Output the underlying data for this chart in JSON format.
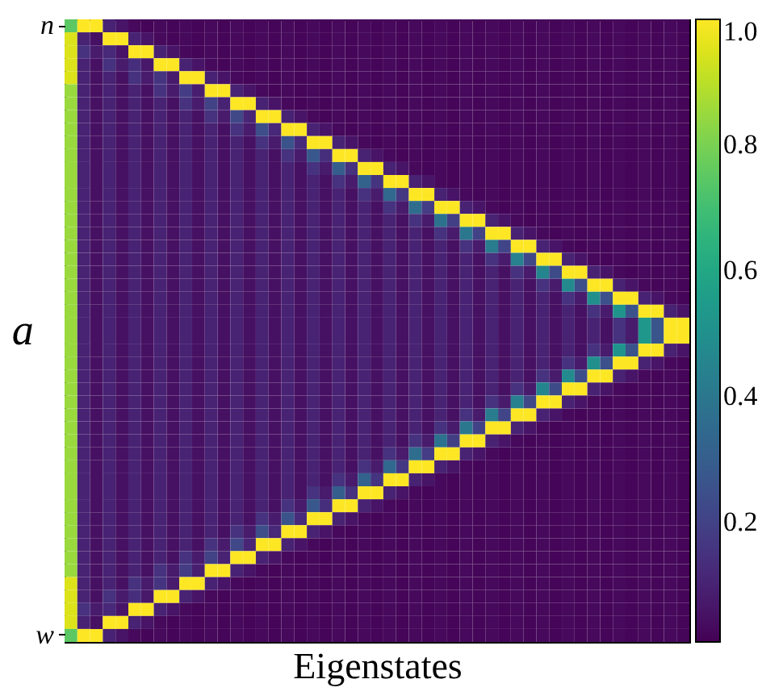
{
  "chart_data": {
    "type": "heatmap",
    "xlabel": "Eigenstates",
    "ylabel": "a",
    "categories": [
      null,
      null,
      null,
      null,
      null,
      null,
      null,
      null,
      null,
      null,
      null,
      null,
      null,
      null,
      null,
      null,
      null,
      null,
      null,
      null,
      null,
      null,
      null,
      null,
      null,
      null,
      null,
      null,
      null,
      null,
      null,
      null,
      null,
      null,
      null,
      null,
      null,
      null,
      null,
      null,
      null,
      null,
      null,
      null,
      null,
      null,
      null,
      null,
      null
    ],
    "y_categories": [
      "n",
      null,
      null,
      null,
      null,
      null,
      null,
      null,
      null,
      null,
      null,
      null,
      null,
      null,
      null,
      null,
      null,
      null,
      null,
      null,
      null,
      null,
      null,
      null,
      null,
      null,
      null,
      null,
      null,
      null,
      null,
      null,
      null,
      null,
      null,
      null,
      null,
      null,
      null,
      null,
      null,
      null,
      null,
      null,
      null,
      null,
      null,
      "w"
    ],
    "clim": [
      0.01,
      1
    ],
    "cticks": [
      0.2,
      0.4,
      0.6,
      0.8,
      {
        "value": 1,
        "label": "1.0"
      }
    ],
    "cells": [
      [
        0.75,
        1,
        1,
        0.1,
        0.06,
        0.03,
        0.02,
        0.03,
        0.02,
        0.03,
        0.02,
        0.03,
        0.02,
        0.03,
        0.02,
        0.03,
        0.02,
        0.03,
        0.02,
        0.03,
        0.02,
        0.03,
        0.02,
        0.03,
        0.02,
        0.03,
        0.02,
        0.03,
        0.02,
        0.03,
        0.02,
        0.03,
        0.02,
        0.03,
        0.02,
        0.03,
        0.02,
        0.03,
        0.02,
        0.03,
        0.02,
        0.03,
        0.02,
        0.03,
        0.02,
        0.03,
        0.02,
        0.03,
        0.02
      ],
      [
        0.95,
        0.1,
        0.05,
        1,
        1,
        0.1,
        0.06,
        0.03,
        0.02,
        0.03,
        0.02,
        0.03,
        0.02,
        0.03,
        0.02,
        0.03,
        0.02,
        0.03,
        0.02,
        0.03,
        0.02,
        0.03,
        0.02,
        0.03,
        0.02,
        0.03,
        0.02,
        0.03,
        0.02,
        0.03,
        0.02,
        0.03,
        0.02,
        0.03,
        0.02,
        0.03,
        0.02,
        0.03,
        0.02,
        0.03,
        0.02,
        0.03,
        0.02,
        0.03,
        0.02,
        0.03,
        0.02,
        0.03,
        0.02
      ],
      [
        0.95,
        0.15,
        0.08,
        0.12,
        0.06,
        1,
        1,
        0.1,
        0.06,
        0.03,
        0.02,
        0.03,
        0.02,
        0.03,
        0.02,
        0.03,
        0.02,
        0.03,
        0.02,
        0.03,
        0.02,
        0.03,
        0.02,
        0.03,
        0.02,
        0.03,
        0.02,
        0.03,
        0.02,
        0.03,
        0.02,
        0.03,
        0.02,
        0.03,
        0.02,
        0.03,
        0.02,
        0.03,
        0.02,
        0.03,
        0.02,
        0.03,
        0.02,
        0.03,
        0.02,
        0.03,
        0.02,
        0.03,
        0.02
      ],
      [
        0.95,
        0.1,
        0.05,
        0.15,
        0.08,
        0.14,
        0.07,
        1,
        1,
        0.1,
        0.06,
        0.03,
        0.02,
        0.03,
        0.02,
        0.03,
        0.02,
        0.03,
        0.02,
        0.03,
        0.02,
        0.03,
        0.02,
        0.03,
        0.02,
        0.03,
        0.02,
        0.03,
        0.02,
        0.03,
        0.02,
        0.03,
        0.02,
        0.03,
        0.02,
        0.03,
        0.02,
        0.03,
        0.02,
        0.03,
        0.02,
        0.03,
        0.02,
        0.03,
        0.02,
        0.03,
        0.02,
        0.03,
        0.02
      ],
      [
        0.95,
        0.1,
        0.05,
        0.1,
        0.05,
        0.15,
        0.08,
        0.16,
        0.08,
        1,
        1,
        0.1,
        0.06,
        0.03,
        0.02,
        0.03,
        0.02,
        0.03,
        0.02,
        0.03,
        0.02,
        0.03,
        0.02,
        0.03,
        0.02,
        0.03,
        0.02,
        0.03,
        0.02,
        0.03,
        0.02,
        0.03,
        0.02,
        0.03,
        0.02,
        0.03,
        0.02,
        0.03,
        0.02,
        0.03,
        0.02,
        0.03,
        0.02,
        0.03,
        0.02,
        0.03,
        0.02,
        0.03,
        0.02
      ],
      [
        0.85,
        0.1,
        0.05,
        0.1,
        0.05,
        0.1,
        0.05,
        0.15,
        0.08,
        0.18,
        0.09,
        1,
        1,
        0.1,
        0.06,
        0.03,
        0.02,
        0.03,
        0.02,
        0.03,
        0.02,
        0.03,
        0.02,
        0.03,
        0.02,
        0.03,
        0.02,
        0.03,
        0.02,
        0.03,
        0.02,
        0.03,
        0.02,
        0.03,
        0.02,
        0.03,
        0.02,
        0.03,
        0.02,
        0.03,
        0.02,
        0.03,
        0.02,
        0.03,
        0.02,
        0.03,
        0.02,
        0.03,
        0.02
      ],
      [
        0.85,
        0.1,
        0.05,
        0.1,
        0.05,
        0.1,
        0.05,
        0.1,
        0.05,
        0.15,
        0.08,
        0.2,
        0.1,
        1,
        1,
        0.1,
        0.06,
        0.03,
        0.02,
        0.03,
        0.02,
        0.03,
        0.02,
        0.03,
        0.02,
        0.03,
        0.02,
        0.03,
        0.02,
        0.03,
        0.02,
        0.03,
        0.02,
        0.03,
        0.02,
        0.03,
        0.02,
        0.03,
        0.02,
        0.03,
        0.02,
        0.03,
        0.02,
        0.03,
        0.02,
        0.03,
        0.02,
        0.03,
        0.02
      ],
      [
        0.85,
        0.1,
        0.05,
        0.1,
        0.05,
        0.1,
        0.05,
        0.1,
        0.05,
        0.1,
        0.05,
        0.15,
        0.08,
        0.22,
        0.11,
        1,
        1,
        0.1,
        0.06,
        0.03,
        0.02,
        0.03,
        0.02,
        0.03,
        0.02,
        0.03,
        0.02,
        0.03,
        0.02,
        0.03,
        0.02,
        0.03,
        0.02,
        0.03,
        0.02,
        0.03,
        0.02,
        0.03,
        0.02,
        0.03,
        0.02,
        0.03,
        0.02,
        0.03,
        0.02,
        0.03,
        0.02,
        0.03,
        0.02
      ],
      [
        0.85,
        0.1,
        0.05,
        0.1,
        0.05,
        0.1,
        0.05,
        0.1,
        0.05,
        0.1,
        0.05,
        0.1,
        0.05,
        0.15,
        0.08,
        0.24,
        0.12,
        1,
        1,
        0.1,
        0.06,
        0.03,
        0.02,
        0.03,
        0.02,
        0.03,
        0.02,
        0.03,
        0.02,
        0.03,
        0.02,
        0.03,
        0.02,
        0.03,
        0.02,
        0.03,
        0.02,
        0.03,
        0.02,
        0.03,
        0.02,
        0.03,
        0.02,
        0.03,
        0.02,
        0.03,
        0.02,
        0.03,
        0.02
      ],
      [
        0.85,
        0.1,
        0.05,
        0.1,
        0.05,
        0.1,
        0.05,
        0.1,
        0.05,
        0.1,
        0.05,
        0.1,
        0.05,
        0.1,
        0.05,
        0.15,
        0.08,
        0.26,
        0.13,
        1,
        1,
        0.1,
        0.06,
        0.03,
        0.02,
        0.03,
        0.02,
        0.03,
        0.02,
        0.03,
        0.02,
        0.03,
        0.02,
        0.03,
        0.02,
        0.03,
        0.02,
        0.03,
        0.02,
        0.03,
        0.02,
        0.03,
        0.02,
        0.03,
        0.02,
        0.03,
        0.02,
        0.03,
        0.02
      ],
      [
        0.85,
        0.1,
        0.05,
        0.1,
        0.05,
        0.1,
        0.05,
        0.1,
        0.05,
        0.1,
        0.05,
        0.1,
        0.05,
        0.1,
        0.05,
        0.1,
        0.05,
        0.15,
        0.08,
        0.28,
        0.14,
        1,
        1,
        0.1,
        0.06,
        0.03,
        0.02,
        0.03,
        0.02,
        0.03,
        0.02,
        0.03,
        0.02,
        0.03,
        0.02,
        0.03,
        0.02,
        0.03,
        0.02,
        0.03,
        0.02,
        0.03,
        0.02,
        0.03,
        0.02,
        0.03,
        0.02,
        0.03,
        0.02
      ],
      [
        0.85,
        0.1,
        0.05,
        0.1,
        0.05,
        0.1,
        0.05,
        0.1,
        0.05,
        0.1,
        0.05,
        0.1,
        0.05,
        0.1,
        0.05,
        0.1,
        0.05,
        0.1,
        0.05,
        0.15,
        0.08,
        0.3,
        0.15,
        1,
        1,
        0.1,
        0.06,
        0.03,
        0.02,
        0.03,
        0.02,
        0.03,
        0.02,
        0.03,
        0.02,
        0.03,
        0.02,
        0.03,
        0.02,
        0.03,
        0.02,
        0.03,
        0.02,
        0.03,
        0.02,
        0.03,
        0.02,
        0.03,
        0.02
      ],
      [
        0.85,
        0.1,
        0.05,
        0.1,
        0.05,
        0.1,
        0.05,
        0.1,
        0.05,
        0.1,
        0.05,
        0.1,
        0.05,
        0.1,
        0.05,
        0.1,
        0.05,
        0.1,
        0.05,
        0.1,
        0.05,
        0.15,
        0.08,
        0.32,
        0.16,
        1,
        1,
        0.1,
        0.06,
        0.03,
        0.02,
        0.03,
        0.02,
        0.03,
        0.02,
        0.03,
        0.02,
        0.03,
        0.02,
        0.03,
        0.02,
        0.03,
        0.02,
        0.03,
        0.02,
        0.03,
        0.02,
        0.03,
        0.02
      ],
      [
        0.85,
        0.1,
        0.05,
        0.1,
        0.05,
        0.1,
        0.05,
        0.1,
        0.05,
        0.1,
        0.05,
        0.1,
        0.05,
        0.1,
        0.05,
        0.1,
        0.05,
        0.1,
        0.05,
        0.1,
        0.05,
        0.1,
        0.05,
        0.15,
        0.08,
        0.34,
        0.17,
        1,
        1,
        0.1,
        0.06,
        0.03,
        0.02,
        0.03,
        0.02,
        0.03,
        0.02,
        0.03,
        0.02,
        0.03,
        0.02,
        0.03,
        0.02,
        0.03,
        0.02,
        0.03,
        0.02,
        0.03,
        0.02
      ],
      [
        0.85,
        0.1,
        0.05,
        0.1,
        0.05,
        0.1,
        0.05,
        0.1,
        0.05,
        0.1,
        0.05,
        0.1,
        0.05,
        0.1,
        0.05,
        0.1,
        0.05,
        0.1,
        0.05,
        0.1,
        0.05,
        0.1,
        0.05,
        0.1,
        0.05,
        0.15,
        0.08,
        0.36,
        0.18,
        1,
        1,
        0.1,
        0.06,
        0.03,
        0.02,
        0.03,
        0.02,
        0.03,
        0.02,
        0.03,
        0.02,
        0.03,
        0.02,
        0.03,
        0.02,
        0.03,
        0.02,
        0.03,
        0.02
      ],
      [
        0.85,
        0.1,
        0.05,
        0.1,
        0.05,
        0.1,
        0.05,
        0.1,
        0.05,
        0.1,
        0.05,
        0.1,
        0.05,
        0.1,
        0.05,
        0.1,
        0.05,
        0.1,
        0.05,
        0.1,
        0.05,
        0.1,
        0.05,
        0.1,
        0.05,
        0.1,
        0.05,
        0.15,
        0.08,
        0.38,
        0.19,
        1,
        1,
        0.1,
        0.06,
        0.03,
        0.02,
        0.03,
        0.02,
        0.03,
        0.02,
        0.03,
        0.02,
        0.03,
        0.02,
        0.03,
        0.02,
        0.03,
        0.02
      ],
      [
        0.85,
        0.1,
        0.05,
        0.1,
        0.05,
        0.1,
        0.05,
        0.1,
        0.05,
        0.1,
        0.05,
        0.1,
        0.05,
        0.1,
        0.05,
        0.1,
        0.05,
        0.1,
        0.05,
        0.1,
        0.05,
        0.1,
        0.05,
        0.1,
        0.05,
        0.1,
        0.05,
        0.1,
        0.05,
        0.15,
        0.08,
        0.4,
        0.2,
        1,
        1,
        0.1,
        0.06,
        0.03,
        0.02,
        0.03,
        0.02,
        0.03,
        0.02,
        0.03,
        0.02,
        0.03,
        0.02,
        0.03,
        0.02
      ],
      [
        0.85,
        0.1,
        0.05,
        0.1,
        0.05,
        0.1,
        0.05,
        0.1,
        0.05,
        0.1,
        0.05,
        0.1,
        0.05,
        0.1,
        0.05,
        0.1,
        0.05,
        0.1,
        0.05,
        0.1,
        0.05,
        0.1,
        0.05,
        0.1,
        0.05,
        0.1,
        0.05,
        0.1,
        0.05,
        0.1,
        0.05,
        0.15,
        0.08,
        0.42,
        0.21,
        1,
        1,
        0.1,
        0.06,
        0.03,
        0.02,
        0.03,
        0.02,
        0.03,
        0.02,
        0.03,
        0.02,
        0.03,
        0.02
      ],
      [
        0.85,
        0.1,
        0.05,
        0.1,
        0.05,
        0.1,
        0.05,
        0.1,
        0.05,
        0.1,
        0.05,
        0.1,
        0.05,
        0.1,
        0.05,
        0.1,
        0.05,
        0.1,
        0.05,
        0.1,
        0.05,
        0.1,
        0.05,
        0.1,
        0.05,
        0.1,
        0.05,
        0.1,
        0.05,
        0.1,
        0.05,
        0.1,
        0.05,
        0.15,
        0.08,
        0.44,
        0.22,
        1,
        1,
        0.1,
        0.06,
        0.03,
        0.02,
        0.03,
        0.02,
        0.03,
        0.02,
        0.03,
        0.02
      ],
      [
        0.85,
        0.1,
        0.05,
        0.1,
        0.05,
        0.1,
        0.05,
        0.1,
        0.05,
        0.1,
        0.05,
        0.1,
        0.05,
        0.1,
        0.05,
        0.1,
        0.05,
        0.1,
        0.05,
        0.1,
        0.05,
        0.1,
        0.05,
        0.1,
        0.05,
        0.1,
        0.05,
        0.1,
        0.05,
        0.1,
        0.05,
        0.1,
        0.05,
        0.1,
        0.05,
        0.15,
        0.08,
        0.46,
        0.23,
        1,
        1,
        0.1,
        0.06,
        0.03,
        0.02,
        0.03,
        0.02,
        0.03,
        0.02
      ],
      [
        0.85,
        0.1,
        0.05,
        0.1,
        0.05,
        0.1,
        0.05,
        0.1,
        0.05,
        0.1,
        0.05,
        0.1,
        0.05,
        0.1,
        0.05,
        0.1,
        0.05,
        0.1,
        0.05,
        0.1,
        0.05,
        0.1,
        0.05,
        0.1,
        0.05,
        0.1,
        0.05,
        0.1,
        0.05,
        0.1,
        0.05,
        0.1,
        0.05,
        0.1,
        0.05,
        0.1,
        0.05,
        0.15,
        0.08,
        0.48,
        0.24,
        1,
        1,
        0.1,
        0.06,
        0.03,
        0.02,
        0.03,
        0.02
      ],
      [
        0.85,
        0.1,
        0.05,
        0.1,
        0.05,
        0.1,
        0.05,
        0.1,
        0.05,
        0.1,
        0.05,
        0.1,
        0.05,
        0.1,
        0.05,
        0.1,
        0.05,
        0.1,
        0.05,
        0.1,
        0.05,
        0.1,
        0.05,
        0.1,
        0.05,
        0.1,
        0.05,
        0.1,
        0.05,
        0.1,
        0.05,
        0.1,
        0.05,
        0.1,
        0.05,
        0.1,
        0.05,
        0.1,
        0.05,
        0.15,
        0.08,
        0.5,
        0.25,
        1,
        1,
        0.1,
        0.06,
        0.03,
        0.02
      ],
      [
        0.85,
        0.1,
        0.05,
        0.1,
        0.05,
        0.1,
        0.05,
        0.1,
        0.05,
        0.1,
        0.05,
        0.1,
        0.05,
        0.1,
        0.05,
        0.1,
        0.05,
        0.1,
        0.05,
        0.1,
        0.05,
        0.1,
        0.05,
        0.1,
        0.05,
        0.1,
        0.05,
        0.1,
        0.05,
        0.1,
        0.05,
        0.1,
        0.05,
        0.1,
        0.05,
        0.1,
        0.05,
        0.1,
        0.05,
        0.1,
        0.05,
        0.15,
        0.08,
        0.52,
        0.26,
        1,
        1,
        0.1,
        0.06
      ],
      [
        0.85,
        0.1,
        0.05,
        0.1,
        0.05,
        0.1,
        0.05,
        0.1,
        0.05,
        0.1,
        0.05,
        0.1,
        0.05,
        0.1,
        0.05,
        0.1,
        0.05,
        0.1,
        0.05,
        0.1,
        0.05,
        0.1,
        0.05,
        0.1,
        0.05,
        0.1,
        0.05,
        0.1,
        0.05,
        0.1,
        0.05,
        0.1,
        0.05,
        0.1,
        0.05,
        0.1,
        0.05,
        0.1,
        0.05,
        0.1,
        0.05,
        0.1,
        0.05,
        0.15,
        0.08,
        0.54,
        0.27,
        1,
        1
      ],
      [
        0.85,
        0.1,
        0.05,
        0.1,
        0.05,
        0.1,
        0.05,
        0.1,
        0.05,
        0.1,
        0.05,
        0.1,
        0.05,
        0.1,
        0.05,
        0.1,
        0.05,
        0.1,
        0.05,
        0.1,
        0.05,
        0.1,
        0.05,
        0.1,
        0.05,
        0.1,
        0.05,
        0.1,
        0.05,
        0.1,
        0.05,
        0.1,
        0.05,
        0.1,
        0.05,
        0.1,
        0.05,
        0.1,
        0.05,
        0.1,
        0.05,
        0.1,
        0.05,
        0.15,
        0.08,
        0.54,
        0.27,
        1,
        1
      ],
      [
        0.85,
        0.1,
        0.05,
        0.1,
        0.05,
        0.1,
        0.05,
        0.1,
        0.05,
        0.1,
        0.05,
        0.1,
        0.05,
        0.1,
        0.05,
        0.1,
        0.05,
        0.1,
        0.05,
        0.1,
        0.05,
        0.1,
        0.05,
        0.1,
        0.05,
        0.1,
        0.05,
        0.1,
        0.05,
        0.1,
        0.05,
        0.1,
        0.05,
        0.1,
        0.05,
        0.1,
        0.05,
        0.1,
        0.05,
        0.1,
        0.05,
        0.15,
        0.08,
        0.52,
        0.26,
        1,
        1,
        0.1,
        0.06
      ],
      [
        0.85,
        0.1,
        0.05,
        0.1,
        0.05,
        0.1,
        0.05,
        0.1,
        0.05,
        0.1,
        0.05,
        0.1,
        0.05,
        0.1,
        0.05,
        0.1,
        0.05,
        0.1,
        0.05,
        0.1,
        0.05,
        0.1,
        0.05,
        0.1,
        0.05,
        0.1,
        0.05,
        0.1,
        0.05,
        0.1,
        0.05,
        0.1,
        0.05,
        0.1,
        0.05,
        0.1,
        0.05,
        0.1,
        0.05,
        0.15,
        0.08,
        0.5,
        0.25,
        1,
        1,
        0.1,
        0.06,
        0.03,
        0.02
      ],
      [
        0.85,
        0.1,
        0.05,
        0.1,
        0.05,
        0.1,
        0.05,
        0.1,
        0.05,
        0.1,
        0.05,
        0.1,
        0.05,
        0.1,
        0.05,
        0.1,
        0.05,
        0.1,
        0.05,
        0.1,
        0.05,
        0.1,
        0.05,
        0.1,
        0.05,
        0.1,
        0.05,
        0.1,
        0.05,
        0.1,
        0.05,
        0.1,
        0.05,
        0.1,
        0.05,
        0.1,
        0.05,
        0.15,
        0.08,
        0.48,
        0.24,
        1,
        1,
        0.1,
        0.06,
        0.03,
        0.02,
        0.03,
        0.02
      ],
      [
        0.85,
        0.1,
        0.05,
        0.1,
        0.05,
        0.1,
        0.05,
        0.1,
        0.05,
        0.1,
        0.05,
        0.1,
        0.05,
        0.1,
        0.05,
        0.1,
        0.05,
        0.1,
        0.05,
        0.1,
        0.05,
        0.1,
        0.05,
        0.1,
        0.05,
        0.1,
        0.05,
        0.1,
        0.05,
        0.1,
        0.05,
        0.1,
        0.05,
        0.1,
        0.05,
        0.15,
        0.08,
        0.46,
        0.23,
        1,
        1,
        0.1,
        0.06,
        0.03,
        0.02,
        0.03,
        0.02,
        0.03,
        0.02
      ],
      [
        0.85,
        0.1,
        0.05,
        0.1,
        0.05,
        0.1,
        0.05,
        0.1,
        0.05,
        0.1,
        0.05,
        0.1,
        0.05,
        0.1,
        0.05,
        0.1,
        0.05,
        0.1,
        0.05,
        0.1,
        0.05,
        0.1,
        0.05,
        0.1,
        0.05,
        0.1,
        0.05,
        0.1,
        0.05,
        0.1,
        0.05,
        0.1,
        0.05,
        0.15,
        0.08,
        0.44,
        0.22,
        1,
        1,
        0.1,
        0.06,
        0.03,
        0.02,
        0.03,
        0.02,
        0.03,
        0.02,
        0.03,
        0.02
      ],
      [
        0.85,
        0.1,
        0.05,
        0.1,
        0.05,
        0.1,
        0.05,
        0.1,
        0.05,
        0.1,
        0.05,
        0.1,
        0.05,
        0.1,
        0.05,
        0.1,
        0.05,
        0.1,
        0.05,
        0.1,
        0.05,
        0.1,
        0.05,
        0.1,
        0.05,
        0.1,
        0.05,
        0.1,
        0.05,
        0.1,
        0.05,
        0.15,
        0.08,
        0.42,
        0.21,
        1,
        1,
        0.1,
        0.06,
        0.03,
        0.02,
        0.03,
        0.02,
        0.03,
        0.02,
        0.03,
        0.02,
        0.03,
        0.02
      ],
      [
        0.85,
        0.1,
        0.05,
        0.1,
        0.05,
        0.1,
        0.05,
        0.1,
        0.05,
        0.1,
        0.05,
        0.1,
        0.05,
        0.1,
        0.05,
        0.1,
        0.05,
        0.1,
        0.05,
        0.1,
        0.05,
        0.1,
        0.05,
        0.1,
        0.05,
        0.1,
        0.05,
        0.1,
        0.05,
        0.15,
        0.08,
        0.4,
        0.2,
        1,
        1,
        0.1,
        0.06,
        0.03,
        0.02,
        0.03,
        0.02,
        0.03,
        0.02,
        0.03,
        0.02,
        0.03,
        0.02,
        0.03,
        0.02
      ],
      [
        0.85,
        0.1,
        0.05,
        0.1,
        0.05,
        0.1,
        0.05,
        0.1,
        0.05,
        0.1,
        0.05,
        0.1,
        0.05,
        0.1,
        0.05,
        0.1,
        0.05,
        0.1,
        0.05,
        0.1,
        0.05,
        0.1,
        0.05,
        0.1,
        0.05,
        0.1,
        0.05,
        0.15,
        0.08,
        0.38,
        0.19,
        1,
        1,
        0.1,
        0.06,
        0.03,
        0.02,
        0.03,
        0.02,
        0.03,
        0.02,
        0.03,
        0.02,
        0.03,
        0.02,
        0.03,
        0.02,
        0.03,
        0.02
      ],
      [
        0.85,
        0.1,
        0.05,
        0.1,
        0.05,
        0.1,
        0.05,
        0.1,
        0.05,
        0.1,
        0.05,
        0.1,
        0.05,
        0.1,
        0.05,
        0.1,
        0.05,
        0.1,
        0.05,
        0.1,
        0.05,
        0.1,
        0.05,
        0.1,
        0.05,
        0.15,
        0.08,
        0.36,
        0.18,
        1,
        1,
        0.1,
        0.06,
        0.03,
        0.02,
        0.03,
        0.02,
        0.03,
        0.02,
        0.03,
        0.02,
        0.03,
        0.02,
        0.03,
        0.02,
        0.03,
        0.02,
        0.03,
        0.02
      ],
      [
        0.85,
        0.1,
        0.05,
        0.1,
        0.05,
        0.1,
        0.05,
        0.1,
        0.05,
        0.1,
        0.05,
        0.1,
        0.05,
        0.1,
        0.05,
        0.1,
        0.05,
        0.1,
        0.05,
        0.1,
        0.05,
        0.1,
        0.05,
        0.15,
        0.08,
        0.34,
        0.17,
        1,
        1,
        0.1,
        0.06,
        0.03,
        0.02,
        0.03,
        0.02,
        0.03,
        0.02,
        0.03,
        0.02,
        0.03,
        0.02,
        0.03,
        0.02,
        0.03,
        0.02,
        0.03,
        0.02,
        0.03,
        0.02
      ],
      [
        0.85,
        0.1,
        0.05,
        0.1,
        0.05,
        0.1,
        0.05,
        0.1,
        0.05,
        0.1,
        0.05,
        0.1,
        0.05,
        0.1,
        0.05,
        0.1,
        0.05,
        0.1,
        0.05,
        0.1,
        0.05,
        0.15,
        0.08,
        0.32,
        0.16,
        1,
        1,
        0.1,
        0.06,
        0.03,
        0.02,
        0.03,
        0.02,
        0.03,
        0.02,
        0.03,
        0.02,
        0.03,
        0.02,
        0.03,
        0.02,
        0.03,
        0.02,
        0.03,
        0.02,
        0.03,
        0.02,
        0.03,
        0.02
      ],
      [
        0.85,
        0.1,
        0.05,
        0.1,
        0.05,
        0.1,
        0.05,
        0.1,
        0.05,
        0.1,
        0.05,
        0.1,
        0.05,
        0.1,
        0.05,
        0.1,
        0.05,
        0.1,
        0.05,
        0.15,
        0.08,
        0.3,
        0.15,
        1,
        1,
        0.1,
        0.06,
        0.03,
        0.02,
        0.03,
        0.02,
        0.03,
        0.02,
        0.03,
        0.02,
        0.03,
        0.02,
        0.03,
        0.02,
        0.03,
        0.02,
        0.03,
        0.02,
        0.03,
        0.02,
        0.03,
        0.02,
        0.03,
        0.02
      ],
      [
        0.85,
        0.1,
        0.05,
        0.1,
        0.05,
        0.1,
        0.05,
        0.1,
        0.05,
        0.1,
        0.05,
        0.1,
        0.05,
        0.1,
        0.05,
        0.1,
        0.05,
        0.15,
        0.08,
        0.28,
        0.14,
        1,
        1,
        0.1,
        0.06,
        0.03,
        0.02,
        0.03,
        0.02,
        0.03,
        0.02,
        0.03,
        0.02,
        0.03,
        0.02,
        0.03,
        0.02,
        0.03,
        0.02,
        0.03,
        0.02,
        0.03,
        0.02,
        0.03,
        0.02,
        0.03,
        0.02,
        0.03,
        0.02
      ],
      [
        0.85,
        0.1,
        0.05,
        0.1,
        0.05,
        0.1,
        0.05,
        0.1,
        0.05,
        0.1,
        0.05,
        0.1,
        0.05,
        0.1,
        0.05,
        0.15,
        0.08,
        0.26,
        0.13,
        1,
        1,
        0.1,
        0.06,
        0.03,
        0.02,
        0.03,
        0.02,
        0.03,
        0.02,
        0.03,
        0.02,
        0.03,
        0.02,
        0.03,
        0.02,
        0.03,
        0.02,
        0.03,
        0.02,
        0.03,
        0.02,
        0.03,
        0.02,
        0.03,
        0.02,
        0.03,
        0.02,
        0.03,
        0.02
      ],
      [
        0.85,
        0.1,
        0.05,
        0.1,
        0.05,
        0.1,
        0.05,
        0.1,
        0.05,
        0.1,
        0.05,
        0.1,
        0.05,
        0.15,
        0.08,
        0.24,
        0.12,
        1,
        1,
        0.1,
        0.06,
        0.03,
        0.02,
        0.03,
        0.02,
        0.03,
        0.02,
        0.03,
        0.02,
        0.03,
        0.02,
        0.03,
        0.02,
        0.03,
        0.02,
        0.03,
        0.02,
        0.03,
        0.02,
        0.03,
        0.02,
        0.03,
        0.02,
        0.03,
        0.02,
        0.03,
        0.02,
        0.03,
        0.02
      ],
      [
        0.85,
        0.1,
        0.05,
        0.1,
        0.05,
        0.1,
        0.05,
        0.1,
        0.05,
        0.1,
        0.05,
        0.15,
        0.08,
        0.22,
        0.11,
        1,
        1,
        0.1,
        0.06,
        0.03,
        0.02,
        0.03,
        0.02,
        0.03,
        0.02,
        0.03,
        0.02,
        0.03,
        0.02,
        0.03,
        0.02,
        0.03,
        0.02,
        0.03,
        0.02,
        0.03,
        0.02,
        0.03,
        0.02,
        0.03,
        0.02,
        0.03,
        0.02,
        0.03,
        0.02,
        0.03,
        0.02,
        0.03,
        0.02
      ],
      [
        0.85,
        0.1,
        0.05,
        0.1,
        0.05,
        0.1,
        0.05,
        0.1,
        0.05,
        0.15,
        0.08,
        0.2,
        0.1,
        1,
        1,
        0.1,
        0.06,
        0.03,
        0.02,
        0.03,
        0.02,
        0.03,
        0.02,
        0.03,
        0.02,
        0.03,
        0.02,
        0.03,
        0.02,
        0.03,
        0.02,
        0.03,
        0.02,
        0.03,
        0.02,
        0.03,
        0.02,
        0.03,
        0.02,
        0.03,
        0.02,
        0.03,
        0.02,
        0.03,
        0.02,
        0.03,
        0.02,
        0.03,
        0.02
      ],
      [
        0.85,
        0.1,
        0.05,
        0.1,
        0.05,
        0.1,
        0.05,
        0.15,
        0.08,
        0.18,
        0.09,
        1,
        1,
        0.1,
        0.06,
        0.03,
        0.02,
        0.03,
        0.02,
        0.03,
        0.02,
        0.03,
        0.02,
        0.03,
        0.02,
        0.03,
        0.02,
        0.03,
        0.02,
        0.03,
        0.02,
        0.03,
        0.02,
        0.03,
        0.02,
        0.03,
        0.02,
        0.03,
        0.02,
        0.03,
        0.02,
        0.03,
        0.02,
        0.03,
        0.02,
        0.03,
        0.02,
        0.03,
        0.02
      ],
      [
        0.95,
        0.1,
        0.05,
        0.1,
        0.05,
        0.15,
        0.08,
        0.16,
        0.08,
        1,
        1,
        0.1,
        0.06,
        0.03,
        0.02,
        0.03,
        0.02,
        0.03,
        0.02,
        0.03,
        0.02,
        0.03,
        0.02,
        0.03,
        0.02,
        0.03,
        0.02,
        0.03,
        0.02,
        0.03,
        0.02,
        0.03,
        0.02,
        0.03,
        0.02,
        0.03,
        0.02,
        0.03,
        0.02,
        0.03,
        0.02,
        0.03,
        0.02,
        0.03,
        0.02,
        0.03,
        0.02,
        0.03,
        0.02
      ],
      [
        0.95,
        0.1,
        0.05,
        0.15,
        0.08,
        0.14,
        0.07,
        1,
        1,
        0.1,
        0.06,
        0.03,
        0.02,
        0.03,
        0.02,
        0.03,
        0.02,
        0.03,
        0.02,
        0.03,
        0.02,
        0.03,
        0.02,
        0.03,
        0.02,
        0.03,
        0.02,
        0.03,
        0.02,
        0.03,
        0.02,
        0.03,
        0.02,
        0.03,
        0.02,
        0.03,
        0.02,
        0.03,
        0.02,
        0.03,
        0.02,
        0.03,
        0.02,
        0.03,
        0.02,
        0.03,
        0.02,
        0.03,
        0.02
      ],
      [
        0.95,
        0.15,
        0.08,
        0.12,
        0.06,
        1,
        1,
        0.1,
        0.06,
        0.03,
        0.02,
        0.03,
        0.02,
        0.03,
        0.02,
        0.03,
        0.02,
        0.03,
        0.02,
        0.03,
        0.02,
        0.03,
        0.02,
        0.03,
        0.02,
        0.03,
        0.02,
        0.03,
        0.02,
        0.03,
        0.02,
        0.03,
        0.02,
        0.03,
        0.02,
        0.03,
        0.02,
        0.03,
        0.02,
        0.03,
        0.02,
        0.03,
        0.02,
        0.03,
        0.02,
        0.03,
        0.02,
        0.03,
        0.02
      ],
      [
        0.95,
        0.1,
        0.05,
        1,
        1,
        0.1,
        0.06,
        0.03,
        0.02,
        0.03,
        0.02,
        0.03,
        0.02,
        0.03,
        0.02,
        0.03,
        0.02,
        0.03,
        0.02,
        0.03,
        0.02,
        0.03,
        0.02,
        0.03,
        0.02,
        0.03,
        0.02,
        0.03,
        0.02,
        0.03,
        0.02,
        0.03,
        0.02,
        0.03,
        0.02,
        0.03,
        0.02,
        0.03,
        0.02,
        0.03,
        0.02,
        0.03,
        0.02,
        0.03,
        0.02,
        0.03,
        0.02,
        0.03,
        0.02
      ],
      [
        0.75,
        1,
        1,
        0.1,
        0.06,
        0.03,
        0.02,
        0.03,
        0.02,
        0.03,
        0.02,
        0.03,
        0.02,
        0.03,
        0.02,
        0.03,
        0.02,
        0.03,
        0.02,
        0.03,
        0.02,
        0.03,
        0.02,
        0.03,
        0.02,
        0.03,
        0.02,
        0.03,
        0.02,
        0.03,
        0.02,
        0.03,
        0.02,
        0.03,
        0.02,
        0.03,
        0.02,
        0.03,
        0.02,
        0.03,
        0.02,
        0.03,
        0.02,
        0.03,
        0.02,
        0.03,
        0.02,
        0.03,
        0.02
      ]
    ]
  }
}
